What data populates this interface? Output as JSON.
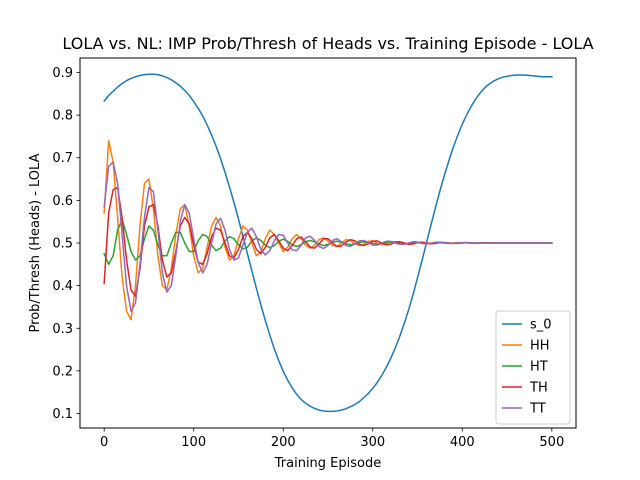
{
  "chart_data": {
    "type": "line",
    "title": "LOLA vs. NL: IMP Prob/Thresh of Heads vs. Training Episode - LOLA",
    "xlabel": "Training Episode",
    "ylabel": "Prob/Thresh (Heads) - LOLA",
    "xlim": [
      -27,
      527
    ],
    "ylim": [
      0.066,
      0.934
    ],
    "xticks": [
      0,
      100,
      200,
      300,
      400,
      500
    ],
    "yticks": [
      0.1,
      0.2,
      0.3,
      0.4,
      0.5,
      0.6,
      0.7,
      0.8,
      0.9
    ],
    "grid": false,
    "legend_position": "lower right",
    "x": [
      0,
      5,
      10,
      15,
      20,
      25,
      30,
      35,
      40,
      45,
      50,
      55,
      60,
      65,
      70,
      75,
      80,
      85,
      90,
      95,
      100,
      105,
      110,
      115,
      120,
      125,
      130,
      135,
      140,
      145,
      150,
      155,
      160,
      165,
      170,
      175,
      180,
      185,
      190,
      195,
      200,
      205,
      210,
      215,
      220,
      225,
      230,
      235,
      240,
      245,
      250,
      255,
      260,
      265,
      270,
      275,
      280,
      285,
      290,
      295,
      300,
      305,
      310,
      315,
      320,
      325,
      330,
      335,
      340,
      345,
      350,
      355,
      360,
      365,
      370,
      375,
      380,
      385,
      390,
      395,
      400,
      405,
      410,
      415,
      420,
      425,
      430,
      435,
      440,
      445,
      450,
      455,
      460,
      465,
      470,
      475,
      480,
      485,
      490,
      495,
      500
    ],
    "series": [
      {
        "name": "s_0",
        "color": "#1f77b4",
        "values": [
          0.833,
          0.846,
          0.856,
          0.866,
          0.874,
          0.881,
          0.886,
          0.89,
          0.893,
          0.895,
          0.896,
          0.896,
          0.895,
          0.892,
          0.888,
          0.883,
          0.876,
          0.868,
          0.858,
          0.846,
          0.832,
          0.816,
          0.798,
          0.777,
          0.753,
          0.727,
          0.698,
          0.666,
          0.631,
          0.595,
          0.556,
          0.516,
          0.475,
          0.434,
          0.394,
          0.355,
          0.318,
          0.284,
          0.252,
          0.224,
          0.199,
          0.178,
          0.16,
          0.145,
          0.133,
          0.124,
          0.117,
          0.112,
          0.108,
          0.106,
          0.105,
          0.105,
          0.106,
          0.108,
          0.111,
          0.116,
          0.121,
          0.128,
          0.137,
          0.147,
          0.159,
          0.173,
          0.189,
          0.208,
          0.229,
          0.253,
          0.28,
          0.31,
          0.343,
          0.379,
          0.418,
          0.459,
          0.5,
          0.542,
          0.583,
          0.622,
          0.659,
          0.693,
          0.725,
          0.753,
          0.779,
          0.801,
          0.821,
          0.838,
          0.852,
          0.864,
          0.873,
          0.88,
          0.885,
          0.889,
          0.891,
          0.893,
          0.894,
          0.894,
          0.894,
          0.893,
          0.892,
          0.891,
          0.89,
          0.89,
          0.89
        ]
      },
      {
        "name": "HH",
        "color": "#ff7f0e",
        "values": [
          0.57,
          0.74,
          0.69,
          0.56,
          0.42,
          0.34,
          0.32,
          0.4,
          0.54,
          0.64,
          0.65,
          0.58,
          0.47,
          0.4,
          0.39,
          0.44,
          0.52,
          0.58,
          0.59,
          0.54,
          0.47,
          0.43,
          0.44,
          0.49,
          0.54,
          0.56,
          0.54,
          0.49,
          0.46,
          0.47,
          0.51,
          0.54,
          0.53,
          0.5,
          0.47,
          0.48,
          0.51,
          0.53,
          0.52,
          0.5,
          0.48,
          0.49,
          0.51,
          0.52,
          0.51,
          0.495,
          0.488,
          0.495,
          0.508,
          0.512,
          0.505,
          0.494,
          0.492,
          0.5,
          0.508,
          0.506,
          0.498,
          0.494,
          0.497,
          0.504,
          0.505,
          0.5,
          0.496,
          0.498,
          0.503,
          0.503,
          0.499,
          0.497,
          0.499,
          0.502,
          0.502,
          0.499,
          0.498,
          0.5,
          0.502,
          0.501,
          0.499,
          0.499,
          0.5,
          0.501,
          0.501,
          0.5,
          0.499,
          0.5,
          0.501,
          0.501,
          0.5,
          0.5,
          0.5,
          0.5,
          0.5,
          0.5,
          0.5,
          0.5,
          0.5,
          0.5,
          0.5,
          0.5,
          0.5,
          0.5,
          0.5
        ]
      },
      {
        "name": "HT",
        "color": "#2ca02c",
        "values": [
          0.475,
          0.45,
          0.47,
          0.53,
          0.555,
          0.52,
          0.48,
          0.46,
          0.47,
          0.51,
          0.54,
          0.53,
          0.495,
          0.47,
          0.47,
          0.5,
          0.525,
          0.525,
          0.5,
          0.48,
          0.48,
          0.505,
          0.52,
          0.515,
          0.495,
          0.482,
          0.488,
          0.505,
          0.515,
          0.51,
          0.496,
          0.486,
          0.49,
          0.505,
          0.512,
          0.506,
          0.495,
          0.489,
          0.494,
          0.504,
          0.509,
          0.504,
          0.496,
          0.492,
          0.496,
          0.503,
          0.506,
          0.503,
          0.497,
          0.494,
          0.497,
          0.502,
          0.504,
          0.502,
          0.498,
          0.496,
          0.498,
          0.501,
          0.503,
          0.501,
          0.499,
          0.497,
          0.499,
          0.501,
          0.502,
          0.501,
          0.499,
          0.498,
          0.499,
          0.501,
          0.501,
          0.5,
          0.499,
          0.499,
          0.5,
          0.501,
          0.501,
          0.5,
          0.499,
          0.5,
          0.5,
          0.501,
          0.5,
          0.5,
          0.5,
          0.5,
          0.5,
          0.5,
          0.5,
          0.5,
          0.5,
          0.5,
          0.5,
          0.5,
          0.5,
          0.5,
          0.5,
          0.5,
          0.5,
          0.5,
          0.5
        ]
      },
      {
        "name": "TH",
        "color": "#d62728",
        "values": [
          0.405,
          0.57,
          0.625,
          0.63,
          0.56,
          0.46,
          0.39,
          0.375,
          0.44,
          0.54,
          0.585,
          0.59,
          0.54,
          0.46,
          0.42,
          0.43,
          0.48,
          0.54,
          0.56,
          0.545,
          0.495,
          0.455,
          0.45,
          0.475,
          0.515,
          0.535,
          0.53,
          0.5,
          0.47,
          0.465,
          0.485,
          0.515,
          0.525,
          0.51,
          0.485,
          0.475,
          0.49,
          0.512,
          0.52,
          0.505,
          0.488,
          0.482,
          0.494,
          0.51,
          0.514,
          0.503,
          0.49,
          0.488,
          0.498,
          0.51,
          0.51,
          0.5,
          0.492,
          0.493,
          0.502,
          0.508,
          0.505,
          0.497,
          0.494,
          0.498,
          0.504,
          0.505,
          0.5,
          0.496,
          0.497,
          0.502,
          0.503,
          0.5,
          0.497,
          0.498,
          0.501,
          0.502,
          0.5,
          0.498,
          0.499,
          0.501,
          0.501,
          0.5,
          0.499,
          0.499,
          0.5,
          0.501,
          0.5,
          0.499,
          0.5,
          0.5,
          0.5,
          0.5,
          0.5,
          0.5,
          0.5,
          0.5,
          0.5,
          0.5,
          0.5,
          0.5,
          0.5,
          0.5,
          0.5,
          0.5,
          0.5
        ]
      },
      {
        "name": "TT",
        "color": "#9467bd",
        "values": [
          0.585,
          0.68,
          0.69,
          0.64,
          0.52,
          0.4,
          0.34,
          0.36,
          0.45,
          0.56,
          0.63,
          0.62,
          0.53,
          0.43,
          0.385,
          0.4,
          0.47,
          0.55,
          0.59,
          0.57,
          0.51,
          0.455,
          0.43,
          0.45,
          0.5,
          0.545,
          0.558,
          0.53,
          0.485,
          0.46,
          0.465,
          0.495,
          0.525,
          0.535,
          0.515,
          0.485,
          0.472,
          0.482,
          0.505,
          0.52,
          0.518,
          0.5,
          0.484,
          0.482,
          0.495,
          0.512,
          0.516,
          0.506,
          0.492,
          0.487,
          0.494,
          0.506,
          0.51,
          0.503,
          0.494,
          0.492,
          0.498,
          0.505,
          0.506,
          0.501,
          0.495,
          0.495,
          0.5,
          0.504,
          0.504,
          0.5,
          0.497,
          0.497,
          0.5,
          0.503,
          0.502,
          0.499,
          0.498,
          0.499,
          0.501,
          0.502,
          0.501,
          0.499,
          0.499,
          0.5,
          0.501,
          0.501,
          0.5,
          0.499,
          0.5,
          0.5,
          0.5,
          0.5,
          0.5,
          0.5,
          0.5,
          0.5,
          0.5,
          0.5,
          0.5,
          0.5,
          0.5,
          0.5,
          0.5,
          0.5,
          0.5
        ]
      }
    ]
  }
}
